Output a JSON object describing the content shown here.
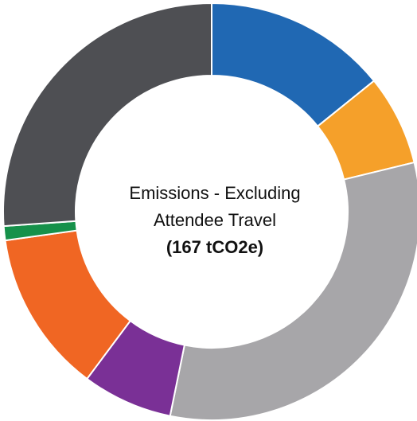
{
  "chart_data": {
    "type": "pie",
    "donut": true,
    "title": "",
    "center_label": {
      "line1": "Emissions - Excluding",
      "line2": "Attendee Travel",
      "total": "(167 tCO2e)"
    },
    "legend": "none",
    "slices": [
      {
        "value": 14.2,
        "color": "#2068b3"
      },
      {
        "value": 7.0,
        "color": "#f5a02a"
      },
      {
        "value": 32.0,
        "color": "#a7a6a9"
      },
      {
        "value": 7.0,
        "color": "#7a3096"
      },
      {
        "value": 12.6,
        "color": "#f06623"
      },
      {
        "value": 1.1,
        "color": "#16914a"
      },
      {
        "value": 26.1,
        "color": "#4e4f53"
      }
    ]
  }
}
